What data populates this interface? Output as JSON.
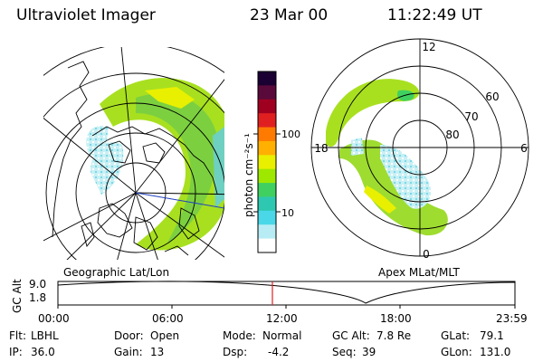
{
  "header": {
    "title": "Ultraviolet Imager",
    "date": "23 Mar 00",
    "time": "11:22:49 UT"
  },
  "colorbar": {
    "unit_label": "photon cm⁻²s⁻¹",
    "ticks": [
      "100",
      "10"
    ],
    "colors": [
      "#1a0033",
      "#5a0a3a",
      "#a00020",
      "#e02020",
      "#ff7a00",
      "#ffb000",
      "#e8f000",
      "#9ee800",
      "#40d060",
      "#2ec8b0",
      "#4ad8e8",
      "#b8ecf4",
      "#ffffff"
    ]
  },
  "geo_panel": {
    "label": "Geographic Lat/Lon",
    "aurora_color": "#a8e020"
  },
  "apex_panel": {
    "label": "Apex MLat/MLT",
    "mlt_labels": {
      "top": "12",
      "left": "18",
      "right": "6",
      "bottom": "0"
    },
    "lat_labels": [
      "60",
      "70",
      "80"
    ]
  },
  "altitude_plot": {
    "ylabel": "GC Alt",
    "ytick_top": "9.0",
    "ytick_bottom": "1.8",
    "xticks": [
      "00:00",
      "06:00",
      "12:00",
      "18:00",
      "23:59"
    ],
    "marker_color": "#e02020"
  },
  "info": {
    "flt_label": "Flt:",
    "flt_value": "LBHL",
    "ip_label": "IP:",
    "ip_value": "36.0",
    "door_label": "Door:",
    "door_value": "Open",
    "gain_label": "Gain:",
    "gain_value": "13",
    "mode_label": "Mode:",
    "mode_value": "Normal",
    "dsp_label": "Dsp:",
    "dsp_value": "-4.2",
    "gcalt_label": "GC Alt:",
    "gcalt_value": "7.8 Re",
    "seq_label": "Seq:",
    "seq_value": "39",
    "glat_label": "GLat:",
    "glat_value": "79.1",
    "glon_label": "GLon:",
    "glon_value": "131.0"
  }
}
